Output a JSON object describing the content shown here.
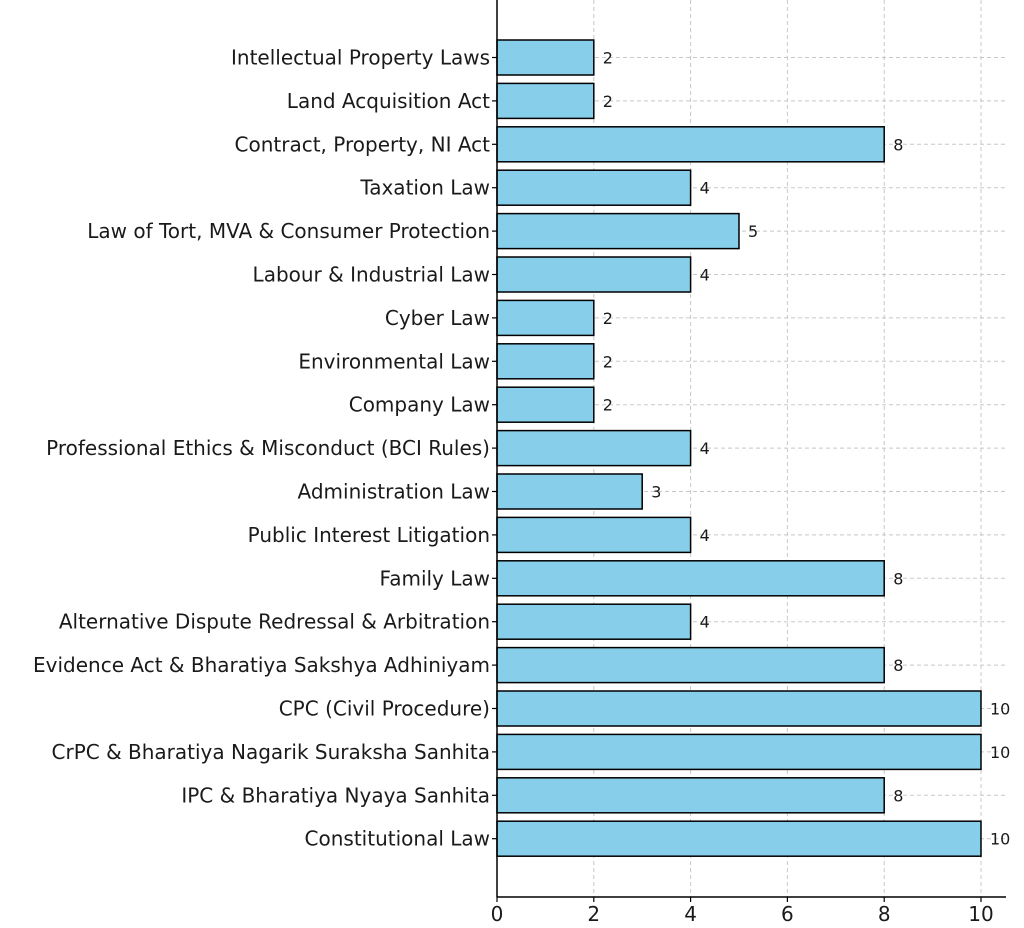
{
  "chart_data": {
    "type": "bar",
    "orientation": "horizontal",
    "title": "",
    "xlabel": "",
    "ylabel": "",
    "xlim": [
      0,
      10.5
    ],
    "xticks": [
      0,
      2,
      4,
      6,
      8,
      10
    ],
    "grid": true,
    "bar_color": "#87CEEB",
    "edge_color": "#000000",
    "categories": [
      "Constitutional Law",
      "IPC & Bharatiya Nyaya Sanhita",
      "CrPC & Bharatiya Nagarik Suraksha Sanhita",
      "CPC (Civil Procedure)",
      "Evidence Act & Bharatiya Sakshya Adhiniyam",
      "Alternative Dispute Redressal & Arbitration",
      "Family Law",
      "Public Interest Litigation",
      "Administration Law",
      "Professional Ethics & Misconduct (BCI Rules)",
      "Company Law",
      "Environmental Law",
      "Cyber Law",
      "Labour & Industrial Law",
      "Law of Tort, MVA & Consumer Protection",
      "Taxation Law",
      "Contract, Property, NI Act",
      "Land Acquisition Act",
      "Intellectual Property Laws"
    ],
    "values": [
      10,
      8,
      10,
      10,
      8,
      4,
      8,
      4,
      3,
      4,
      2,
      2,
      2,
      4,
      5,
      4,
      8,
      2,
      2
    ]
  }
}
